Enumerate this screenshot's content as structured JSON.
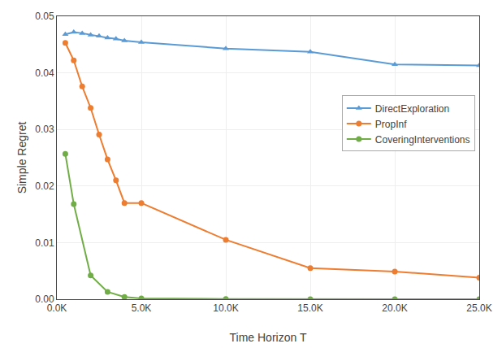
{
  "chart_data": {
    "type": "line",
    "xlabel": "Time Horizon T",
    "ylabel": "Simple Regret",
    "xlim": [
      0,
      25000
    ],
    "ylim": [
      0,
      0.05
    ],
    "xticks": [
      {
        "value": 0,
        "label": "0.0K"
      },
      {
        "value": 5000,
        "label": "5.0K"
      },
      {
        "value": 10000,
        "label": "10.0K"
      },
      {
        "value": 15000,
        "label": "15.0K"
      },
      {
        "value": 20000,
        "label": "20.0K"
      },
      {
        "value": 25000,
        "label": "25.0K"
      }
    ],
    "yticks": [
      {
        "value": 0,
        "label": "0.00"
      },
      0.01,
      0.02,
      0.03,
      0.04,
      0.05
    ],
    "grid": true,
    "legend": "upper right",
    "series": [
      {
        "name": "DirectExploration",
        "color": "#5b9bd5",
        "marker": "triangle",
        "x": [
          500,
          1000,
          1500,
          2000,
          2500,
          3000,
          3500,
          4000,
          5000,
          10000,
          15000,
          20000,
          25000
        ],
        "values": [
          0.0468,
          0.0472,
          0.047,
          0.0467,
          0.0465,
          0.0462,
          0.046,
          0.0457,
          0.0454,
          0.0443,
          0.0437,
          0.0415,
          0.0413
        ]
      },
      {
        "name": "PropInf",
        "color": "#ed7d31",
        "marker": "circle",
        "x": [
          500,
          1000,
          1500,
          2000,
          2500,
          3000,
          3500,
          4000,
          5000,
          10000,
          15000,
          20000,
          25000
        ],
        "values": [
          0.0453,
          0.0422,
          0.0376,
          0.0338,
          0.0291,
          0.0247,
          0.021,
          0.017,
          0.017,
          0.0105,
          0.0055,
          0.0049,
          0.0038
        ]
      },
      {
        "name": "CoveringInterventions",
        "color": "#70ad47",
        "marker": "circle",
        "x": [
          500,
          1000,
          2000,
          3000,
          4000,
          5000,
          10000,
          15000,
          20000,
          25000
        ],
        "values": [
          0.0257,
          0.0168,
          0.0042,
          0.0013,
          0.0004,
          0.00015,
          3.5e-05,
          1.5e-05,
          1e-05,
          5e-06
        ]
      }
    ]
  }
}
